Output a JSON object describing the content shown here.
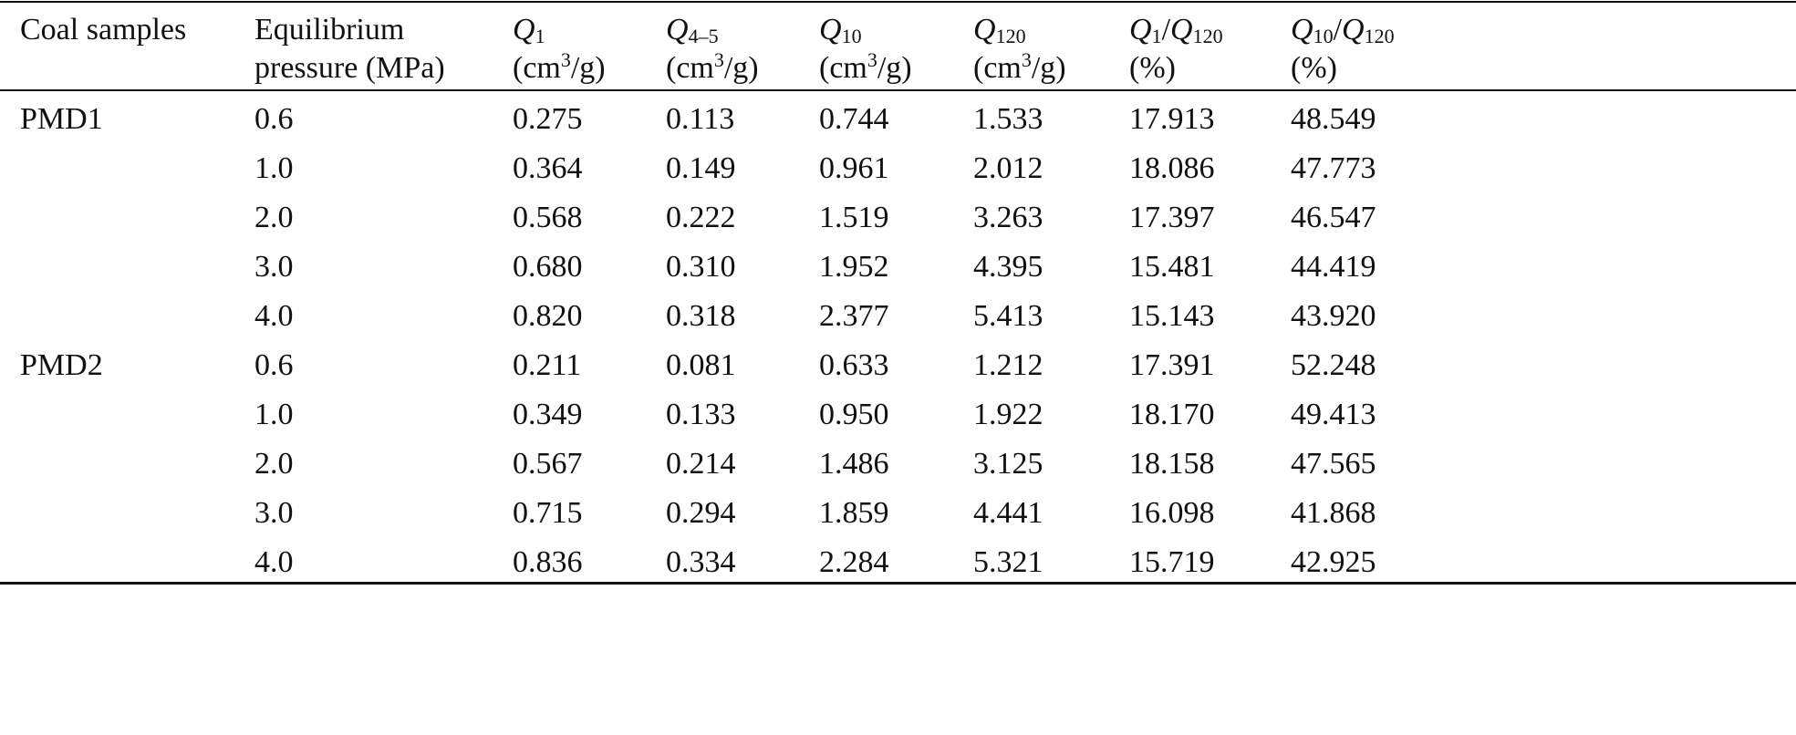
{
  "table": {
    "header": [
      {
        "text": "Coal samples"
      },
      {
        "text": "Equilibrium pressure (MPa)"
      },
      {
        "symbol": "Q",
        "subscript": "1",
        "unit": "(cm",
        "superscript": "3",
        "unit_end": "/g)"
      },
      {
        "symbol": "Q",
        "subscript": "4–5",
        "unit": "(cm",
        "superscript": "3",
        "unit_end": "/g)"
      },
      {
        "symbol": "Q",
        "subscript": "10",
        "unit": "(cm",
        "superscript": "3",
        "unit_end": "/g)"
      },
      {
        "symbol": "Q",
        "subscript": "120",
        "unit": "(cm",
        "superscript": "3",
        "unit_end": "/g)"
      },
      {
        "symbol": "Q",
        "subscript": "1",
        "slash": "/",
        "symbol2": "Q",
        "subscript2": "120",
        "unit": "(%)"
      },
      {
        "symbol": "Q",
        "subscript": "10",
        "slash": "/",
        "symbol2": "Q",
        "subscript2": "120",
        "unit": "(%)"
      }
    ],
    "groups": [
      {
        "sample": "PMD1",
        "rows": [
          [
            "0.6",
            "0.275",
            "0.113",
            "0.744",
            "1.533",
            "17.913",
            "48.549"
          ],
          [
            "1.0",
            "0.364",
            "0.149",
            "0.961",
            "2.012",
            "18.086",
            "47.773"
          ],
          [
            "2.0",
            "0.568",
            "0.222",
            "1.519",
            "3.263",
            "17.397",
            "46.547"
          ],
          [
            "3.0",
            "0.680",
            "0.310",
            "1.952",
            "4.395",
            "15.481",
            "44.419"
          ],
          [
            "4.0",
            "0.820",
            "0.318",
            "2.377",
            "5.413",
            "15.143",
            "43.920"
          ]
        ]
      },
      {
        "sample": "PMD2",
        "rows": [
          [
            "0.6",
            "0.211",
            "0.081",
            "0.633",
            "1.212",
            "17.391",
            "52.248"
          ],
          [
            "1.0",
            "0.349",
            "0.133",
            "0.950",
            "1.922",
            "18.170",
            "49.413"
          ],
          [
            "2.0",
            "0.567",
            "0.214",
            "1.486",
            "3.125",
            "18.158",
            "47.565"
          ],
          [
            "3.0",
            "0.715",
            "0.294",
            "1.859",
            "4.441",
            "16.098",
            "41.868"
          ],
          [
            "4.0",
            "0.836",
            "0.334",
            "2.284",
            "5.321",
            "15.719",
            "42.925"
          ]
        ]
      }
    ]
  }
}
